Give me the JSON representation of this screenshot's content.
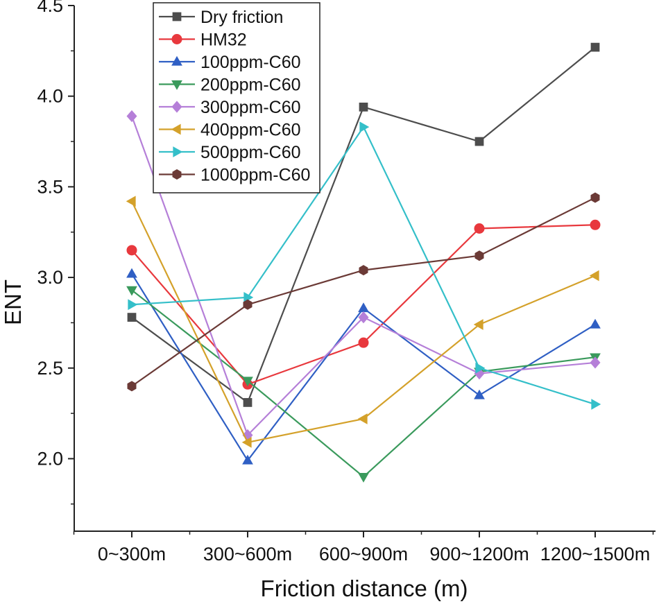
{
  "chart_data": {
    "type": "line",
    "title": "",
    "xlabel": "Friction distance (m)",
    "ylabel": "ENT",
    "categories": [
      "0~300m",
      "300~600m",
      "600~900m",
      "900~1200m",
      "1200~1500m"
    ],
    "ylim": [
      1.6,
      4.5
    ],
    "yticks": [
      2.0,
      2.5,
      3.0,
      3.5,
      4.0,
      4.5
    ],
    "ytick_labels": [
      "2.0",
      "2.5",
      "3.0",
      "3.5",
      "4.0",
      "4.5"
    ],
    "grid": false,
    "legend_position": "top-left",
    "series": [
      {
        "name": "Dry friction",
        "color": "#4d4d4d",
        "marker": "square",
        "values": [
          2.78,
          2.31,
          3.94,
          3.75,
          4.27
        ]
      },
      {
        "name": "HM32",
        "color": "#e8383d",
        "marker": "circle",
        "values": [
          3.15,
          2.41,
          2.64,
          3.27,
          3.29
        ]
      },
      {
        "name": "100ppm-C60",
        "color": "#2f5fc4",
        "marker": "triangle-up",
        "values": [
          3.02,
          1.99,
          2.83,
          2.35,
          2.74
        ]
      },
      {
        "name": "200ppm-C60",
        "color": "#3a9a5c",
        "marker": "triangle-down",
        "values": [
          2.93,
          2.43,
          1.9,
          2.48,
          2.56
        ]
      },
      {
        "name": "300ppm-C60",
        "color": "#b57fd8",
        "marker": "diamond",
        "values": [
          3.89,
          2.13,
          2.78,
          2.47,
          2.53
        ]
      },
      {
        "name": "400ppm-C60",
        "color": "#d4a12a",
        "marker": "triangle-left",
        "values": [
          3.42,
          2.09,
          2.22,
          2.74,
          3.01
        ]
      },
      {
        "name": "500ppm-C60",
        "color": "#34bfc9",
        "marker": "triangle-right",
        "values": [
          2.85,
          2.89,
          3.83,
          2.5,
          2.3
        ]
      },
      {
        "name": "1000ppm-C60",
        "color": "#6b3a36",
        "marker": "hexagon",
        "values": [
          2.4,
          2.85,
          3.04,
          3.12,
          3.44
        ]
      }
    ]
  }
}
